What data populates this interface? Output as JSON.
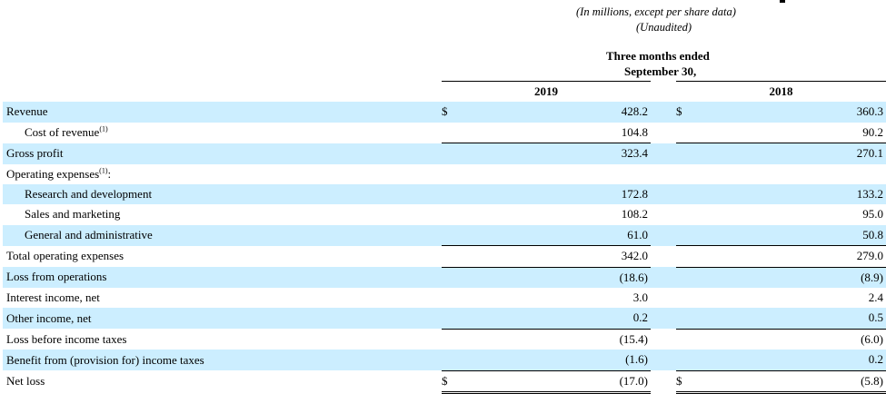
{
  "header": {
    "units_note": "(In millions, except per share data)",
    "audit_note": "(Unaudited)",
    "period_line1": "Three months ended",
    "period_line2": "September 30,"
  },
  "columns": {
    "year1": "2019",
    "year2": "2018",
    "currency": "$"
  },
  "rows": [
    {
      "label": "Revenue",
      "note": "",
      "y1": "428.2",
      "y2": "360.3"
    },
    {
      "label": "Cost of revenue",
      "note": "(1)",
      "y1": "104.8",
      "y2": "90.2"
    },
    {
      "label": "Gross profit",
      "note": "",
      "y1": "323.4",
      "y2": "270.1"
    },
    {
      "label": "Operating expenses",
      "note": "(1)",
      "suffix": ":",
      "y1": "",
      "y2": ""
    },
    {
      "label": "Research and development",
      "note": "",
      "y1": "172.8",
      "y2": "133.2"
    },
    {
      "label": "Sales and marketing",
      "note": "",
      "y1": "108.2",
      "y2": "95.0"
    },
    {
      "label": "General and administrative",
      "note": "",
      "y1": "61.0",
      "y2": "50.8"
    },
    {
      "label": "Total operating expenses",
      "note": "",
      "y1": "342.0",
      "y2": "279.0"
    },
    {
      "label": "Loss from operations",
      "note": "",
      "y1": "(18.6)",
      "y2": "(8.9)"
    },
    {
      "label": "Interest income, net",
      "note": "",
      "y1": "3.0",
      "y2": "2.4"
    },
    {
      "label": "Other income, net",
      "note": "",
      "y1": "0.2",
      "y2": "0.5"
    },
    {
      "label": "Loss before income taxes",
      "note": "",
      "y1": "(15.4)",
      "y2": "(6.0)"
    },
    {
      "label": "Benefit from (provision for) income taxes",
      "note": "",
      "y1": "(1.6)",
      "y2": "0.2"
    },
    {
      "label": "Net loss",
      "note": "",
      "y1": "(17.0)",
      "y2": "(5.8)"
    }
  ]
}
